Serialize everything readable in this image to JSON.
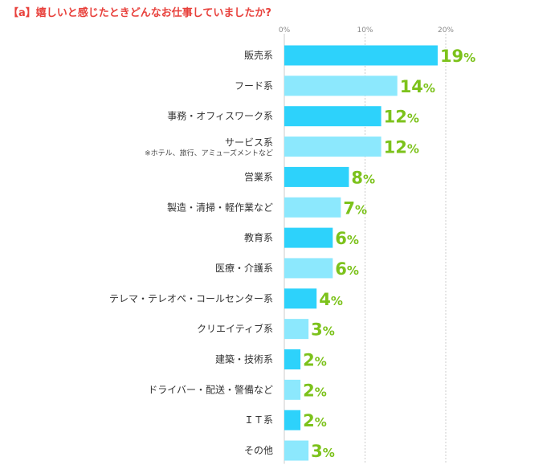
{
  "chart_data": {
    "type": "bar",
    "orientation": "horizontal",
    "title": "【a】嬉しいと感じたときどんなお仕事していましたか?",
    "categories": [
      {
        "label": "販売系",
        "sub": ""
      },
      {
        "label": "フード系",
        "sub": ""
      },
      {
        "label": "事務・オフィスワーク系",
        "sub": ""
      },
      {
        "label": "サービス系",
        "sub": "※ホテル、旅行、アミューズメントなど"
      },
      {
        "label": "営業系",
        "sub": ""
      },
      {
        "label": "製造・清掃・軽作業など",
        "sub": ""
      },
      {
        "label": "教育系",
        "sub": ""
      },
      {
        "label": "医療・介護系",
        "sub": ""
      },
      {
        "label": "テレマ・テレオペ・コールセンター系",
        "sub": ""
      },
      {
        "label": "クリエイティブ系",
        "sub": ""
      },
      {
        "label": "建築・技術系",
        "sub": ""
      },
      {
        "label": "ドライバー・配送・警備など",
        "sub": ""
      },
      {
        "label": "ＩＴ系",
        "sub": ""
      },
      {
        "label": "その他",
        "sub": ""
      }
    ],
    "values": [
      19,
      14,
      12,
      12,
      8,
      7,
      6,
      6,
      4,
      3,
      2,
      2,
      2,
      3
    ],
    "value_suffix": "%",
    "xlim": [
      0,
      20
    ],
    "ticks": [
      {
        "value": 0,
        "label": "0%"
      },
      {
        "value": 10,
        "label": "10%"
      },
      {
        "value": 20,
        "label": "20%"
      }
    ],
    "grid": true,
    "colors": {
      "bar_dark": "#2dd2fb",
      "bar_light": "#8ce8fd",
      "value_text": "#7cc21b",
      "title": "#e8413c",
      "grid": "#cccccc"
    }
  }
}
